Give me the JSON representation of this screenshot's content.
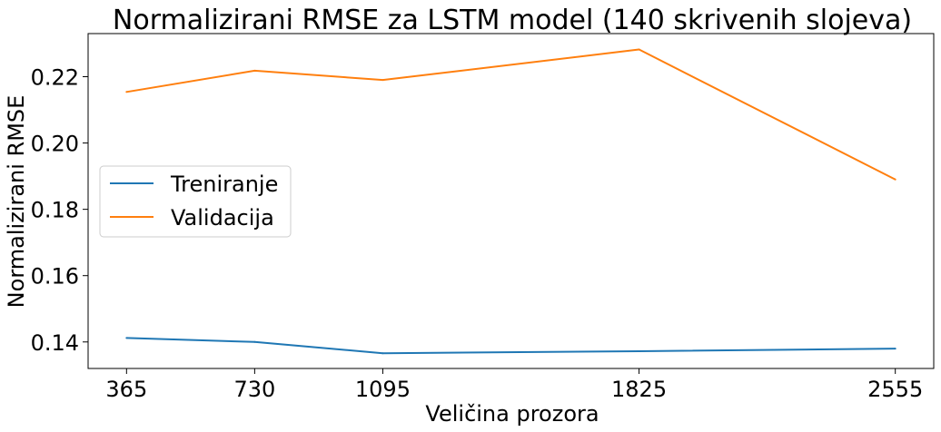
{
  "chart_data": {
    "type": "line",
    "title": "Normalizirani RMSE za LSTM model (140 skrivenih slojeva)",
    "xlabel": "Veličina prozora",
    "ylabel": "Normalizirani RMSE",
    "x": [
      365,
      730,
      1095,
      1825,
      2555
    ],
    "x_tick_labels": [
      "365",
      "730",
      "1095",
      "1825",
      "2555"
    ],
    "xlim": [
      255.5,
      2664.5
    ],
    "ylim": [
      0.132,
      0.233
    ],
    "y_ticks": [
      0.14,
      0.16,
      0.18,
      0.2,
      0.22
    ],
    "y_tick_labels": [
      "0.14",
      "0.16",
      "0.18",
      "0.20",
      "0.22"
    ],
    "grid": false,
    "legend_position": "center-left",
    "series": [
      {
        "name": "Treniranje",
        "color": "#1f77b4",
        "values": [
          0.1412,
          0.14,
          0.1366,
          0.1372,
          0.138
        ]
      },
      {
        "name": "Validacija",
        "color": "#ff7f0e",
        "values": [
          0.2154,
          0.2218,
          0.219,
          0.2282,
          0.189
        ]
      }
    ]
  }
}
